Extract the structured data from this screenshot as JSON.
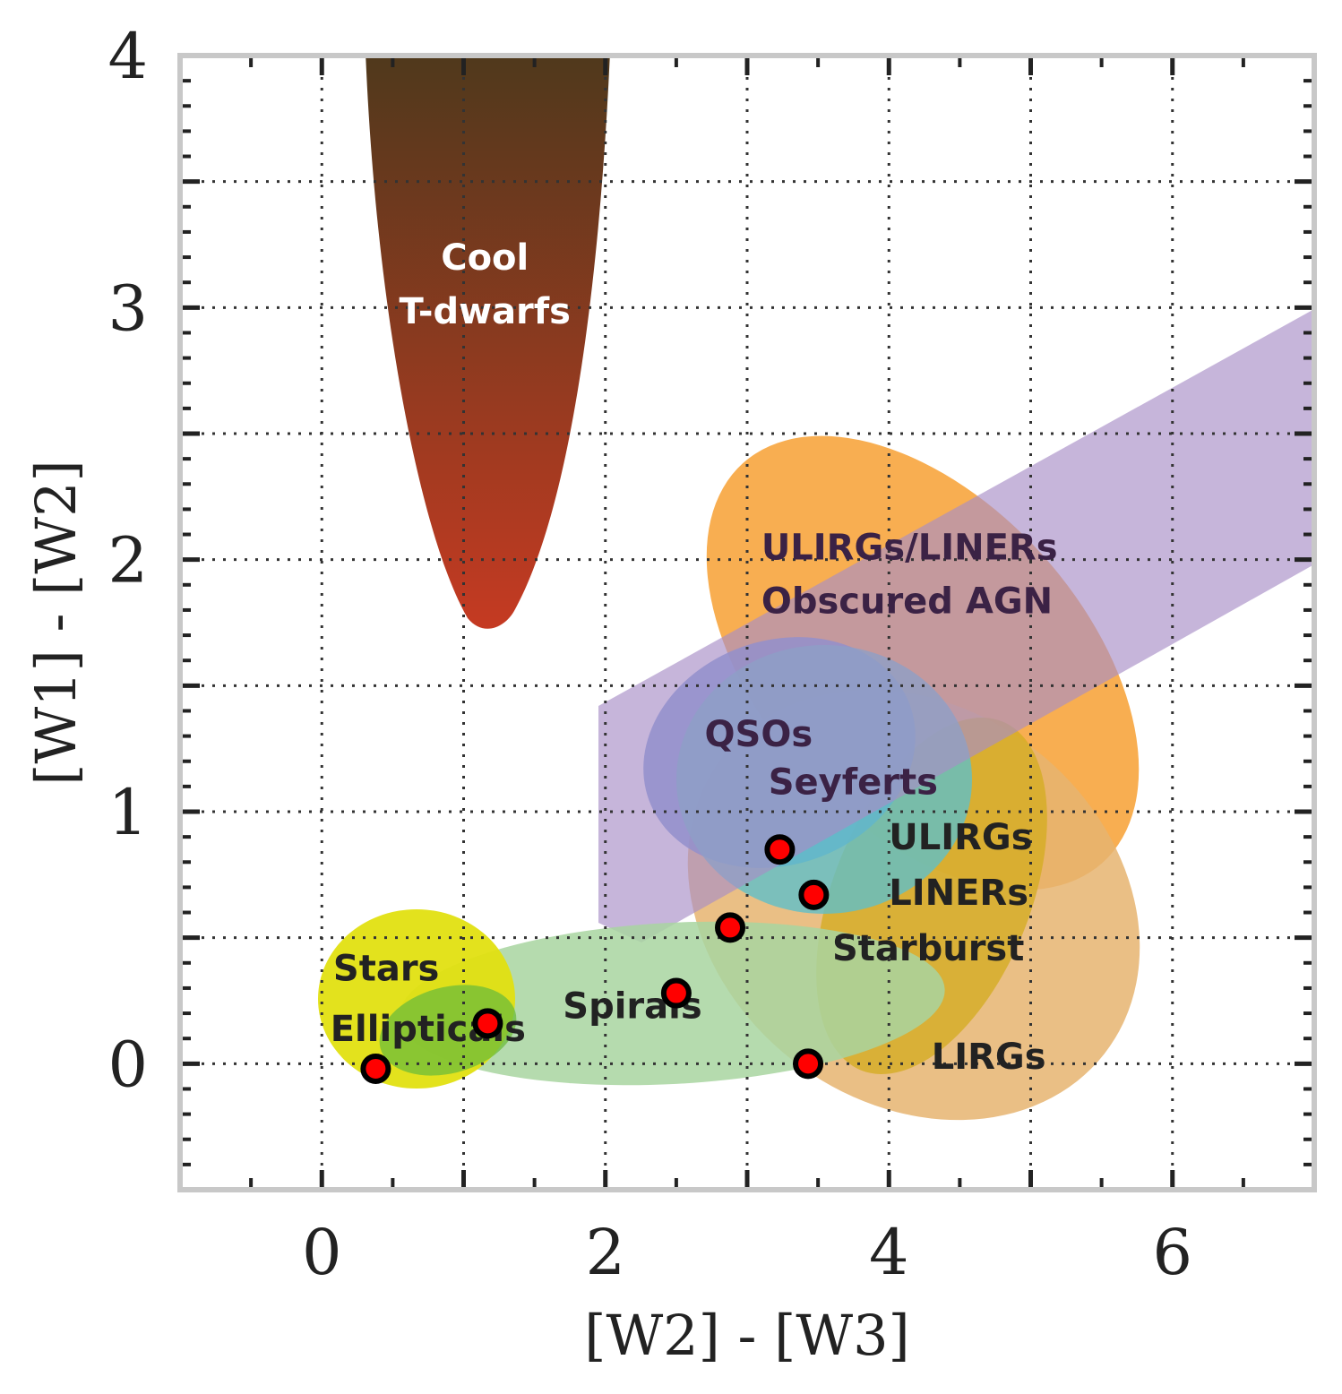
{
  "chart_data": {
    "type": "scatter",
    "title": "",
    "xlabel": "[W2] - [W3]",
    "ylabel": "[W1] - [W2]",
    "xlim": [
      -1,
      7
    ],
    "ylim": [
      -0.5,
      4
    ],
    "xticks": [
      0,
      2,
      4,
      6
    ],
    "yticks": [
      0,
      1,
      2,
      3,
      4
    ],
    "grid": true,
    "points": [
      {
        "x": 0.38,
        "y": -0.02
      },
      {
        "x": 1.17,
        "y": 0.16
      },
      {
        "x": 2.5,
        "y": 0.28
      },
      {
        "x": 2.88,
        "y": 0.54
      },
      {
        "x": 3.23,
        "y": 0.85
      },
      {
        "x": 3.47,
        "y": 0.67
      },
      {
        "x": 3.43,
        "y": 0.0
      }
    ],
    "point_color": "#ff0000",
    "regions": [
      {
        "name": "Cool T-dwarfs",
        "lines": [
          "Cool",
          "T-dwarfs"
        ],
        "color_top": "#4f391c",
        "color_bottom": "#c53a22",
        "text_color": "#ffffff",
        "label_at": [
          1.15,
          3.15
        ]
      },
      {
        "name": "ULIRGs/LINERs Obscured AGN",
        "lines": [
          "ULIRGs/LINERs",
          "Obscured AGN"
        ],
        "color": "#f7a032",
        "text_color": "#3b2245",
        "label_at": [
          3.1,
          2.0
        ]
      },
      {
        "name": "AGN wedge",
        "color": "#a88ec6"
      },
      {
        "name": "QSOs",
        "lines": [
          "QSOs"
        ],
        "color": "#6b93d6",
        "text_color": "#3b2245",
        "label_at": [
          2.7,
          1.26
        ]
      },
      {
        "name": "Seyferts",
        "lines": [
          "Seyferts"
        ],
        "color": "#5fbfc8",
        "text_color": "#3b2245",
        "label_at": [
          3.15,
          1.07
        ]
      },
      {
        "name": "ULIRGs",
        "lines": [
          "ULIRGs"
        ],
        "color": "#d4ad23",
        "text_color": "#222222",
        "label_at": [
          4.0,
          0.85
        ]
      },
      {
        "name": "LINERs",
        "lines": [
          "LINERs"
        ],
        "color": "#d4ad23",
        "text_color": "#222222",
        "label_at": [
          4.0,
          0.63
        ]
      },
      {
        "name": "Starburst",
        "lines": [
          "Starburst"
        ],
        "color": "#d4ad23",
        "text_color": "#222222",
        "label_at": [
          3.6,
          0.41
        ]
      },
      {
        "name": "LIRGs",
        "lines": [
          "LIRGs"
        ],
        "color": "#e6b470",
        "text_color": "#222222",
        "label_at": [
          4.3,
          -0.02
        ]
      },
      {
        "name": "Spirals",
        "lines": [
          "Spirals"
        ],
        "color": "#a8d5a0",
        "text_color": "#222222",
        "label_at": [
          1.7,
          0.18
        ]
      },
      {
        "name": "Stars",
        "lines": [
          "Stars"
        ],
        "color": "#e2e011",
        "text_color": "#222222",
        "label_at": [
          0.08,
          0.33
        ]
      },
      {
        "name": "Ellipticals",
        "lines": [
          "Ellipticals"
        ],
        "color": "#6cbc3a",
        "text_color": "#222222",
        "label_at": [
          0.06,
          0.09
        ]
      }
    ]
  }
}
